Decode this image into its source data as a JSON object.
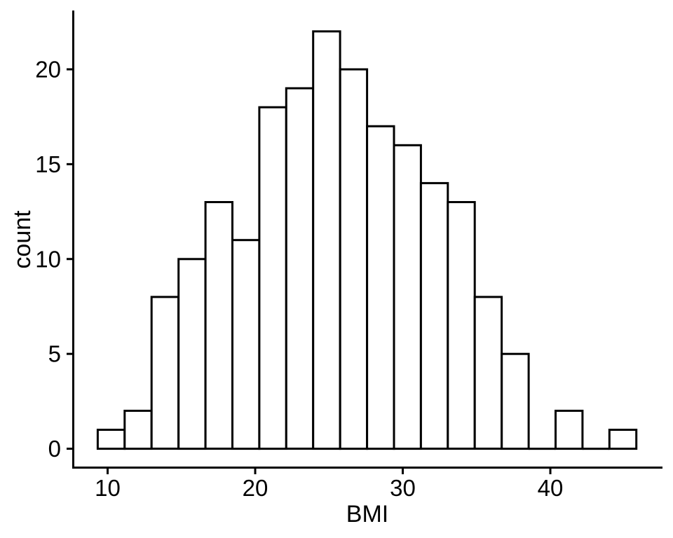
{
  "page": {
    "background_color": "#ffffff"
  },
  "chart_data": {
    "type": "bar",
    "subtype": "histogram",
    "title": "",
    "xlabel": "BMI",
    "ylabel": "count",
    "x_ticks": [
      10,
      20,
      30,
      40
    ],
    "y_ticks": [
      0,
      5,
      10,
      15,
      20
    ],
    "xlim": [
      7.6,
      47.6
    ],
    "ylim": [
      -1.05,
      23.1
    ],
    "bin_start": 9.33,
    "bin_width": 1.825,
    "counts": [
      1,
      2,
      8,
      10,
      13,
      11,
      18,
      19,
      22,
      20,
      17,
      16,
      14,
      13,
      8,
      5,
      0,
      2,
      0,
      1
    ],
    "grid": "off",
    "legend": "none",
    "style": {
      "bar_fill": "#ffffff",
      "bar_stroke": "#000000",
      "bar_stroke_width": 3,
      "axis_color": "#000000",
      "axis_stroke_width": 3,
      "tick_length": 8,
      "text_color": "#000000",
      "tick_font_size": 33,
      "title_font_size": 34
    }
  }
}
